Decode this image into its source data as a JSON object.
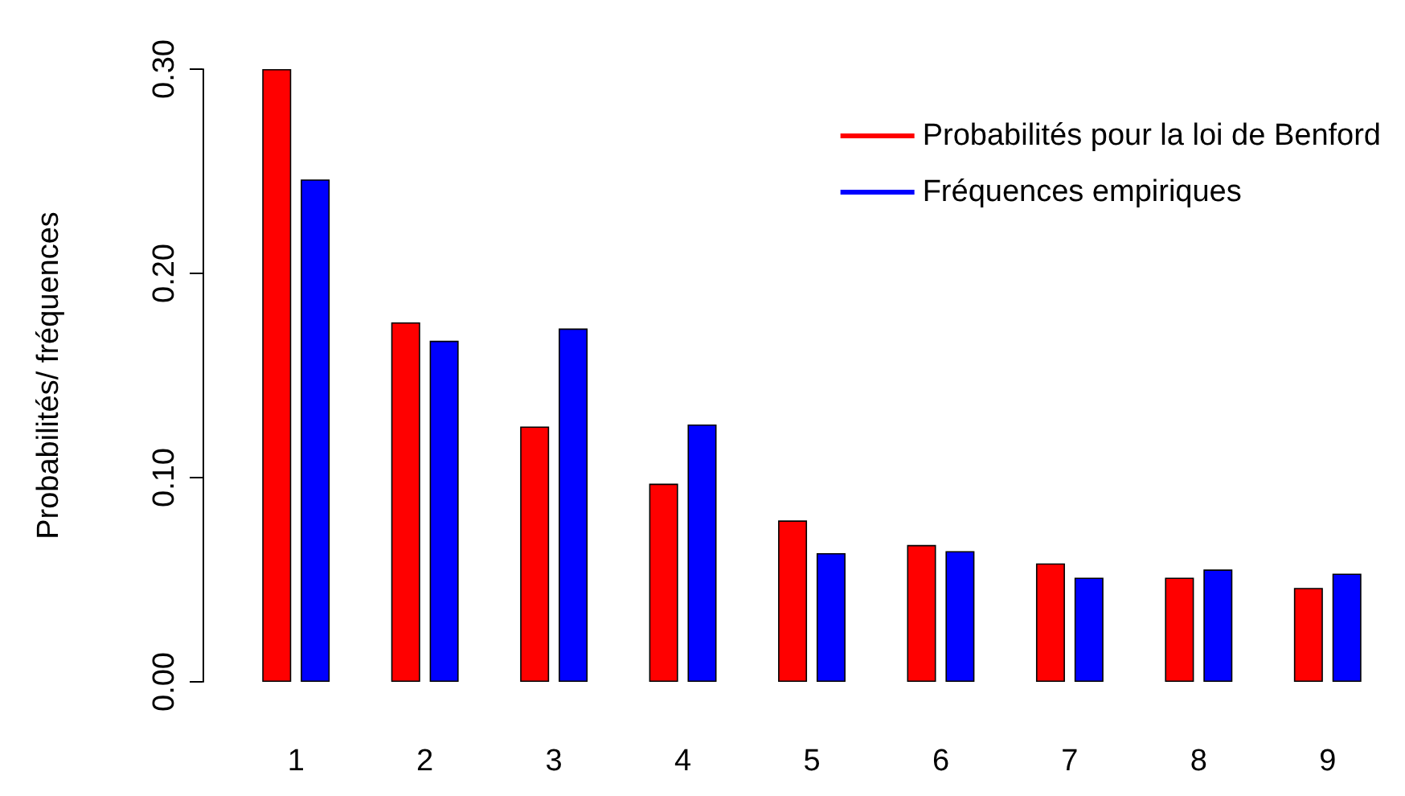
{
  "chart_data": {
    "type": "bar",
    "ylabel": "Probabilités/ fréquences",
    "categories": [
      "1",
      "2",
      "3",
      "4",
      "5",
      "6",
      "7",
      "8",
      "9"
    ],
    "series": [
      {
        "name": "Probabilités pour la loi de Benford",
        "color": "#ff0000",
        "values": [
          0.3,
          0.176,
          0.125,
          0.097,
          0.079,
          0.067,
          0.058,
          0.051,
          0.046
        ]
      },
      {
        "name": "Fréquences empiriques",
        "color": "#0000ff",
        "values": [
          0.246,
          0.167,
          0.173,
          0.126,
          0.063,
          0.064,
          0.051,
          0.055,
          0.053
        ]
      }
    ],
    "ylim": [
      0,
      0.3
    ],
    "yticks": [
      {
        "value": 0,
        "label": "0.00"
      },
      {
        "value": 0.1,
        "label": "0.10"
      },
      {
        "value": 0.2,
        "label": "0.20"
      },
      {
        "value": 0.3,
        "label": "0.30"
      }
    ],
    "grid": false,
    "legend": "top right"
  }
}
